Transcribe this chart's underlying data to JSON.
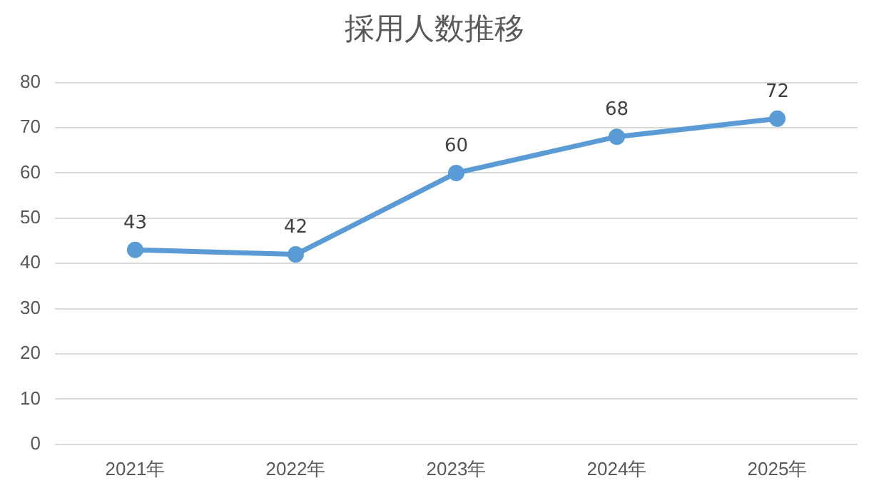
{
  "chart_data": {
    "type": "line",
    "title": "採用人数推移",
    "categories": [
      "2021年",
      "2022年",
      "2023年",
      "2024年",
      "2025年"
    ],
    "values": [
      43,
      42,
      60,
      68,
      72
    ],
    "color": "#5b9bd5",
    "ylim": [
      0,
      80
    ],
    "yticks": [
      0,
      10,
      20,
      30,
      40,
      50,
      60,
      70,
      80
    ],
    "grid": "y",
    "data_labels": true,
    "marker": "circle",
    "line_style": "solid",
    "legend": false
  }
}
